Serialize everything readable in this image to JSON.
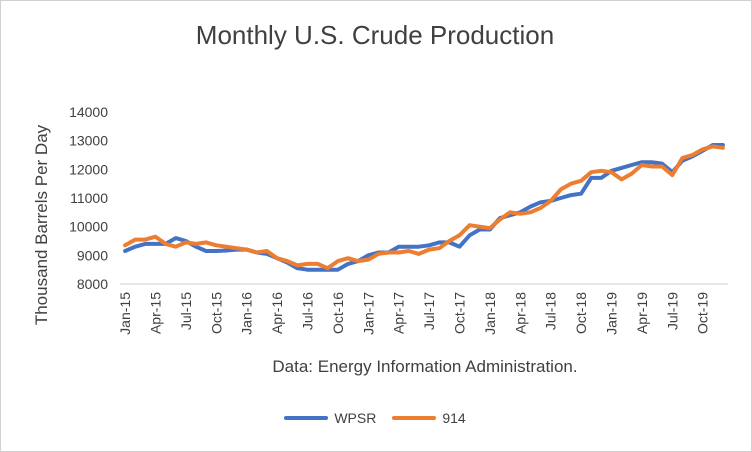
{
  "chart_data": {
    "type": "line",
    "title": "Monthly U.S. Crude Production",
    "xlabel": "Data: Energy Information Administration.",
    "ylabel": "Thousand Barrels Per Day",
    "ylim": [
      8000,
      14000
    ],
    "yticks": [
      8000,
      9000,
      10000,
      11000,
      12000,
      13000,
      14000
    ],
    "grid": false,
    "legend_position": "bottom",
    "tick_labels": [
      "Jan-15",
      "Apr-15",
      "Jul-15",
      "Oct-15",
      "Jan-16",
      "Apr-16",
      "Jul-16",
      "Oct-16",
      "Jan-17",
      "Apr-17",
      "Jul-17",
      "Oct-17",
      "Jan-18",
      "Apr-18",
      "Jul-18",
      "Oct-18",
      "Jan-19",
      "Apr-19",
      "Jul-19",
      "Oct-19"
    ],
    "x": [
      "Jan-15",
      "Feb-15",
      "Mar-15",
      "Apr-15",
      "May-15",
      "Jun-15",
      "Jul-15",
      "Aug-15",
      "Sep-15",
      "Oct-15",
      "Nov-15",
      "Dec-15",
      "Jan-16",
      "Feb-16",
      "Mar-16",
      "Apr-16",
      "May-16",
      "Jun-16",
      "Jul-16",
      "Aug-16",
      "Sep-16",
      "Oct-16",
      "Nov-16",
      "Dec-16",
      "Jan-17",
      "Feb-17",
      "Mar-17",
      "Apr-17",
      "May-17",
      "Jun-17",
      "Jul-17",
      "Aug-17",
      "Sep-17",
      "Oct-17",
      "Nov-17",
      "Dec-17",
      "Jan-18",
      "Feb-18",
      "Mar-18",
      "Apr-18",
      "May-18",
      "Jun-18",
      "Jul-18",
      "Aug-18",
      "Sep-18",
      "Oct-18",
      "Nov-18",
      "Dec-18",
      "Jan-19",
      "Feb-19",
      "Mar-19",
      "Apr-19",
      "May-19",
      "Jun-19",
      "Jul-19",
      "Aug-19",
      "Sep-19",
      "Oct-19",
      "Nov-19",
      "Dec-19"
    ],
    "series": [
      {
        "name": "WPSR",
        "color": "#4472C4",
        "values": [
          9150,
          9300,
          9400,
          9400,
          9400,
          9600,
          9500,
          9300,
          9150,
          9150,
          9170,
          9200,
          9200,
          9100,
          9050,
          8900,
          8750,
          8550,
          8500,
          8500,
          8500,
          8500,
          8700,
          8800,
          9000,
          9100,
          9100,
          9300,
          9300,
          9300,
          9350,
          9450,
          9450,
          9300,
          9700,
          9900,
          9900,
          10300,
          10400,
          10500,
          10700,
          10850,
          10900,
          11000,
          11100,
          11150,
          11700,
          11700,
          11950,
          12050,
          12150,
          12250,
          12250,
          12200,
          11900,
          12300,
          12450,
          12650,
          12850,
          12850
        ]
      },
      {
        "name": "914",
        "color": "#ED7D31",
        "values": [
          9350,
          9550,
          9550,
          9650,
          9400,
          9300,
          9450,
          9400,
          9450,
          9350,
          9300,
          9250,
          9200,
          9100,
          9150,
          8900,
          8800,
          8650,
          8700,
          8700,
          8550,
          8800,
          8900,
          8800,
          8850,
          9050,
          9100,
          9100,
          9150,
          9050,
          9200,
          9250,
          9500,
          9700,
          10050,
          10000,
          9950,
          10250,
          10500,
          10450,
          10500,
          10650,
          10900,
          11300,
          11500,
          11600,
          11900,
          11950,
          11900,
          11650,
          11850,
          12150,
          12100,
          12100,
          11800,
          12400,
          12500,
          12700,
          12800,
          12750
        ]
      }
    ]
  }
}
